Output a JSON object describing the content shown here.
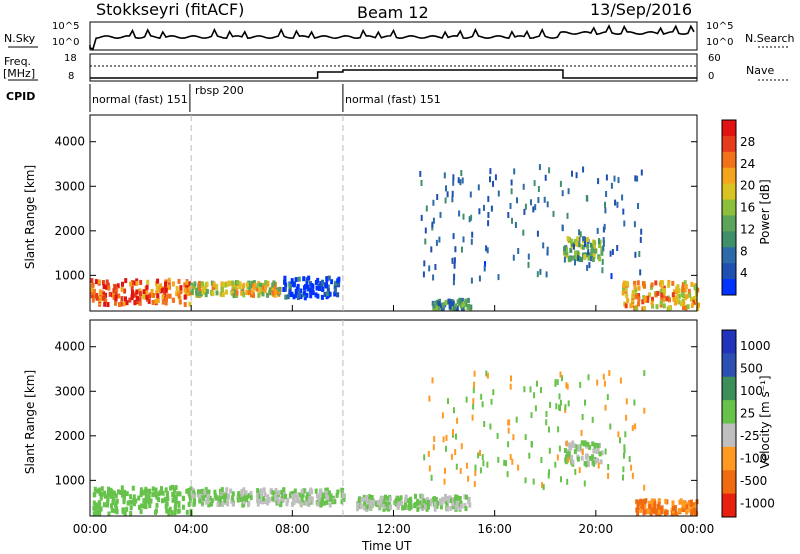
{
  "header": {
    "station": "Stokkseyri (fitACF)",
    "beam": "Beam 12",
    "date": "13/Sep/2016"
  },
  "summary_panels": {
    "nsky_label": "N.Sky",
    "nsky_ticks": [
      "10^5",
      "10^0"
    ],
    "nsearch_label": "N.Search",
    "nsearch_ticks": [
      "10^5",
      "10^0"
    ],
    "freq_label": "Freq.",
    "freq_unit": "[MHz]",
    "freq_ticks": [
      "18",
      "8"
    ],
    "nave_label": "Nave",
    "nave_ticks": [
      "60",
      "0"
    ],
    "cpid_label": "CPID",
    "cpid_segments": [
      {
        "label": "normal (fast) 151"
      },
      {
        "label": "rbsp 200"
      },
      {
        "label": "normal (fast) 151"
      }
    ]
  },
  "chart_data": [
    {
      "type": "heatmap",
      "ylabel": "Slant Range [km]",
      "yticks": [
        "1000",
        "2000",
        "3000",
        "4000"
      ],
      "ylim": [
        200,
        4600
      ],
      "xlim": [
        0,
        24
      ],
      "colorbar": {
        "label": "Power [dB]",
        "ticks": [
          "4",
          "8",
          "12",
          "16",
          "20",
          "24",
          "28"
        ],
        "colors": [
          "#0033ff",
          "#1f4fb0",
          "#2c6aa8",
          "#3f8f6a",
          "#5aa55a",
          "#8cbf3c",
          "#d9c322",
          "#f3a51b",
          "#f2711b",
          "#e63c1c",
          "#e01212"
        ]
      },
      "bands": [
        {
          "t0": 0.0,
          "t1": 3.9,
          "r0": 400,
          "r1": 950,
          "value": 24
        },
        {
          "t0": 3.9,
          "t1": 7.5,
          "r0": 600,
          "r1": 900,
          "value": 18
        },
        {
          "t0": 7.6,
          "t1": 9.8,
          "r0": 550,
          "r1": 1000,
          "value": 6
        },
        {
          "t0": 13.5,
          "t1": 15.0,
          "r0": 300,
          "r1": 500,
          "value": 12
        },
        {
          "t0": 18.7,
          "t1": 20.2,
          "r0": 1400,
          "r1": 1900,
          "value": 14
        },
        {
          "t0": 21.0,
          "t1": 24.0,
          "r0": 300,
          "r1": 900,
          "value": 20
        }
      ]
    },
    {
      "type": "heatmap",
      "ylabel": "Slant Range [km]",
      "xlabel": "Time UT",
      "yticks": [
        "1000",
        "2000",
        "3000",
        "4000"
      ],
      "xticks": [
        "00:00",
        "04:00",
        "08:00",
        "12:00",
        "16:00",
        "20:00",
        "00:00"
      ],
      "ylim": [
        200,
        4600
      ],
      "xlim": [
        0,
        24
      ],
      "colorbar": {
        "label": "Velocity [m s⁻¹]",
        "ticks": [
          "1000",
          "500",
          "100",
          "25",
          "-25",
          "-100",
          "-500",
          "-1000"
        ],
        "colors": [
          "#2233bb",
          "#2c4fb3",
          "#3c8f5a",
          "#66c24a",
          "#bfbfbf",
          "#ff9922",
          "#f06a10",
          "#e82010"
        ]
      },
      "bands": [
        {
          "t0": 0.0,
          "t1": 4.0,
          "r0": 300,
          "r1": 900,
          "value": 100
        },
        {
          "t0": 4.0,
          "t1": 10.0,
          "r0": 500,
          "r1": 850,
          "value": 0
        },
        {
          "t0": 10.5,
          "t1": 15.0,
          "r0": 400,
          "r1": 700,
          "value": 0
        },
        {
          "t0": 18.7,
          "t1": 20.2,
          "r0": 1400,
          "r1": 1900,
          "value": 0
        },
        {
          "t0": 21.5,
          "t1": 24.0,
          "r0": 300,
          "r1": 600,
          "value": -500
        }
      ]
    }
  ]
}
